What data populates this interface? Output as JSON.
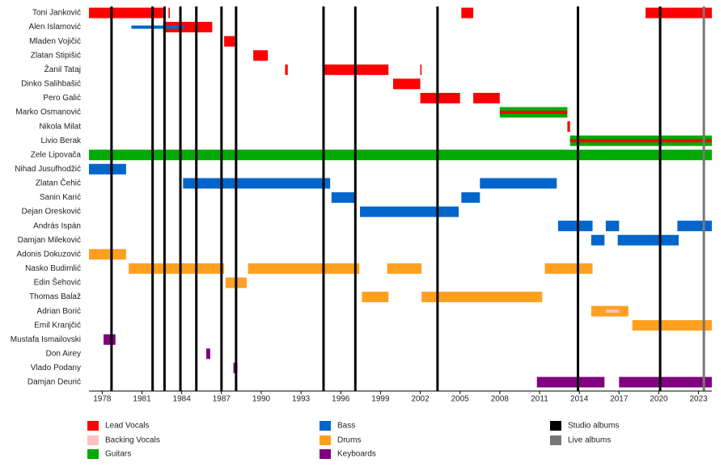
{
  "chart_data": {
    "type": "timeline",
    "xlim": [
      1977,
      2024
    ],
    "xticks": [
      1978,
      1981,
      1984,
      1987,
      1990,
      1993,
      1996,
      1999,
      2002,
      2005,
      2008,
      2011,
      2014,
      2017,
      2020,
      2023
    ],
    "series": [
      {
        "name": "Lead Vocals",
        "color": "#ff0000"
      },
      {
        "name": "Backing Vocals",
        "color": "#ffc0c0"
      },
      {
        "name": "Guitars",
        "color": "#00aa00"
      },
      {
        "name": "Bass",
        "color": "#0066cc"
      },
      {
        "name": "Drums",
        "color": "#ffa020"
      },
      {
        "name": "Keyboards",
        "color": "#800080"
      }
    ],
    "markers": [
      {
        "name": "Studio albums",
        "color": "#000000",
        "x": [
          1978.7,
          1981.8,
          1982.7,
          1983.9,
          1985.1,
          1987.0,
          1988.1,
          1994.7,
          1997.1,
          2003.3,
          2013.9,
          2020.1
        ]
      },
      {
        "name": "Live albums",
        "color": "#777777",
        "x": [
          2023.4
        ]
      }
    ],
    "members": [
      {
        "name": "Toni Janković",
        "periods": [
          {
            "role": "Lead Vocals",
            "start": 1977,
            "end": 1982.6
          },
          {
            "role": "Lead Vocals",
            "start": 1983.0,
            "end": 1983.1
          },
          {
            "role": "Lead Vocals",
            "start": 2005.1,
            "end": 2006.0
          },
          {
            "role": "Lead Vocals",
            "start": 2019.0,
            "end": 2024
          }
        ]
      },
      {
        "name": "Alen Islamović",
        "periods": [
          {
            "role": "Lead Vocals",
            "start": 1982.6,
            "end": 1986.3
          },
          {
            "role": "Bass",
            "start": 1980.2,
            "end": 1984.2
          }
        ]
      },
      {
        "name": "Mladen Vojičić",
        "periods": [
          {
            "role": "Lead Vocals",
            "start": 1987.2,
            "end": 1988.0
          }
        ]
      },
      {
        "name": "Zlatan Stipišić",
        "periods": [
          {
            "role": "Lead Vocals",
            "start": 1989.4,
            "end": 1990.5
          }
        ]
      },
      {
        "name": "Žanil Tataj",
        "periods": [
          {
            "role": "Lead Vocals",
            "start": 1991.8,
            "end": 1992.0
          },
          {
            "role": "Lead Vocals",
            "start": 1994.7,
            "end": 1999.6
          },
          {
            "role": "Lead Vocals",
            "start": 2002.0,
            "end": 2002.1
          }
        ]
      },
      {
        "name": "Dinko Salihbašić",
        "periods": [
          {
            "role": "Lead Vocals",
            "start": 1999.95,
            "end": 2002.0
          }
        ]
      },
      {
        "name": "Pero Galić",
        "periods": [
          {
            "role": "Lead Vocals",
            "start": 2002.0,
            "end": 2005.0
          },
          {
            "role": "Lead Vocals",
            "start": 2006.0,
            "end": 2008.0
          }
        ]
      },
      {
        "name": "Marko Osmanović",
        "periods": [
          {
            "role": "Guitars",
            "start": 2008.0,
            "end": 2013.1
          },
          {
            "role": "Lead Vocals",
            "start": 2008.0,
            "end": 2013.1
          }
        ]
      },
      {
        "name": "Nikola Milat",
        "periods": [
          {
            "role": "Lead Vocals",
            "start": 2013.1,
            "end": 2013.3
          }
        ]
      },
      {
        "name": "Livio Berak",
        "periods": [
          {
            "role": "Guitars",
            "start": 2013.3,
            "end": 2024
          },
          {
            "role": "Lead Vocals",
            "start": 2013.3,
            "end": 2024
          }
        ]
      },
      {
        "name": "Zele Lipovača",
        "periods": [
          {
            "role": "Guitars",
            "start": 1977,
            "end": 2024
          }
        ]
      },
      {
        "name": "Nihad Jusufhodžić",
        "periods": [
          {
            "role": "Bass",
            "start": 1977,
            "end": 1979.8
          }
        ]
      },
      {
        "name": "Zlatan Čehić",
        "periods": [
          {
            "role": "Bass",
            "start": 1984.1,
            "end": 1995.2
          },
          {
            "role": "Bass",
            "start": 2006.5,
            "end": 2012.3
          }
        ]
      },
      {
        "name": "Sanin Karić",
        "periods": [
          {
            "role": "Bass",
            "start": 1995.3,
            "end": 1997.1
          },
          {
            "role": "Bass",
            "start": 2005.1,
            "end": 2006.5
          }
        ]
      },
      {
        "name": "Dejan Oresković",
        "periods": [
          {
            "role": "Bass",
            "start": 1997.45,
            "end": 2004.9
          }
        ]
      },
      {
        "name": "András Ispán",
        "periods": [
          {
            "role": "Bass",
            "start": 2012.4,
            "end": 2015.0
          },
          {
            "role": "Bass",
            "start": 2016.0,
            "end": 2017.0
          },
          {
            "role": "Bass",
            "start": 2021.4,
            "end": 2024
          }
        ]
      },
      {
        "name": "Damjan Mileković",
        "periods": [
          {
            "role": "Bass",
            "start": 2014.9,
            "end": 2015.9
          },
          {
            "role": "Bass",
            "start": 2016.9,
            "end": 2021.5
          }
        ]
      },
      {
        "name": "Adonis Dokuzović",
        "periods": [
          {
            "role": "Drums",
            "start": 1977,
            "end": 1979.8
          }
        ]
      },
      {
        "name": "Nasko Budimlić",
        "periods": [
          {
            "role": "Drums",
            "start": 1980.0,
            "end": 1987.2
          },
          {
            "role": "Drums",
            "start": 1989.0,
            "end": 1997.4
          },
          {
            "role": "Drums",
            "start": 1999.5,
            "end": 2002.1
          },
          {
            "role": "Drums",
            "start": 2011.4,
            "end": 2015.0
          }
        ]
      },
      {
        "name": "Edin Šehović",
        "periods": [
          {
            "role": "Drums",
            "start": 1987.3,
            "end": 1988.9
          }
        ]
      },
      {
        "name": "Thomas Balaž",
        "periods": [
          {
            "role": "Drums",
            "start": 1997.6,
            "end": 1999.6
          },
          {
            "role": "Drums",
            "start": 2002.1,
            "end": 2011.2
          }
        ]
      },
      {
        "name": "Adrian Borić",
        "periods": [
          {
            "role": "Drums",
            "start": 2014.9,
            "end": 2017.7
          },
          {
            "role": "Backing Vocals",
            "start": 2016.0,
            "end": 2017.0
          }
        ]
      },
      {
        "name": "Emil Kranjčić",
        "periods": [
          {
            "role": "Drums",
            "start": 2018.0,
            "end": 2024
          }
        ]
      },
      {
        "name": "Mustafa Ismailovski",
        "periods": [
          {
            "role": "Keyboards",
            "start": 1978.1,
            "end": 1979.0
          }
        ]
      },
      {
        "name": "Don Airey",
        "periods": [
          {
            "role": "Keyboards",
            "start": 1985.85,
            "end": 1986.15
          }
        ]
      },
      {
        "name": "Vlado Podany",
        "periods": [
          {
            "role": "Keyboards",
            "start": 1987.9,
            "end": 1988.2
          }
        ]
      },
      {
        "name": "Damjan Deurić",
        "periods": [
          {
            "role": "Keyboards",
            "start": 2010.8,
            "end": 2015.9
          },
          {
            "role": "Keyboards",
            "start": 2017.0,
            "end": 2024
          }
        ]
      }
    ]
  }
}
